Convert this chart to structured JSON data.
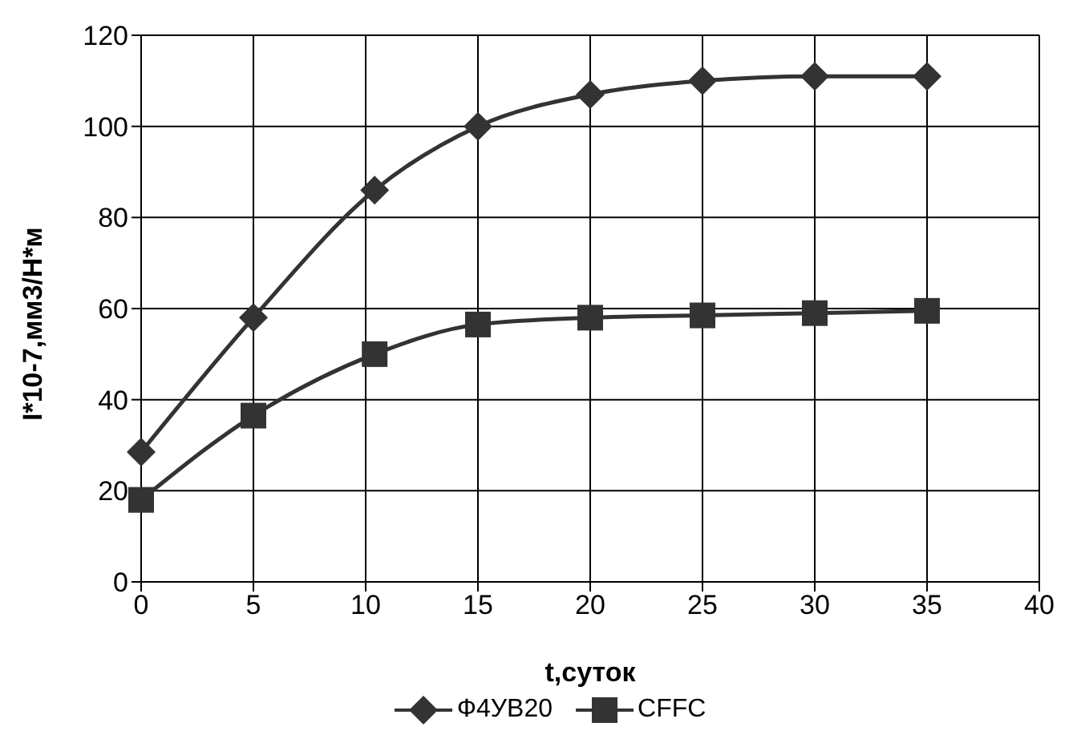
{
  "chart_data": {
    "type": "line",
    "xlabel": "t,суток",
    "ylabel": "I*10-7,мм3/Н*м",
    "x": [
      0,
      5,
      10.4,
      15,
      20,
      25,
      30,
      35
    ],
    "series": [
      {
        "name": "Ф4УВ20",
        "color": "#333333",
        "marker": "diamond",
        "values": [
          28.5,
          58,
          86,
          100,
          107,
          110,
          111,
          111
        ]
      },
      {
        "name": "CFFC",
        "color": "#333333",
        "marker": "square",
        "values": [
          18,
          36.5,
          50,
          56.5,
          58,
          58.5,
          59,
          59.5
        ]
      }
    ],
    "xlim": [
      0,
      40
    ],
    "xticks": [
      0,
      5,
      10,
      15,
      20,
      25,
      30,
      35,
      40
    ],
    "ylim": [
      0,
      120
    ],
    "yticks": [
      0,
      20,
      40,
      60,
      80,
      100,
      120
    ],
    "grid": true,
    "legend": "bottom",
    "line_style": "solid"
  }
}
